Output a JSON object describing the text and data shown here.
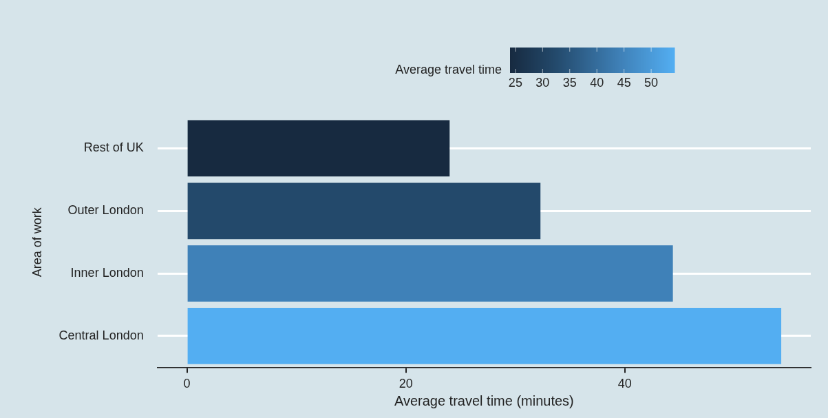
{
  "chart_data": {
    "type": "bar",
    "orientation": "horizontal",
    "xlabel": "Average travel time (minutes)",
    "ylabel": "Area of work",
    "clabel": "Average travel time",
    "categories": [
      "Rest of UK",
      "Outer London",
      "Inner London",
      "Central London"
    ],
    "values": [
      24.0,
      32.3,
      44.4,
      54.3
    ],
    "colors": [
      "#172a40",
      "#23496b",
      "#3f81b8",
      "#53aef2"
    ],
    "xlim": [
      -2.7,
      57
    ],
    "xticks": [
      0,
      20,
      40
    ],
    "clim": [
      24,
      54.3
    ],
    "cticks": [
      25,
      30,
      35,
      40,
      45,
      50
    ],
    "grid": "y"
  }
}
